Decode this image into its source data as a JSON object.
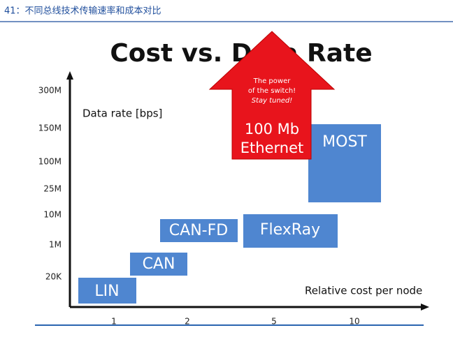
{
  "header": {
    "title": "41：不同总线技术传输速率和成本对比"
  },
  "figure": {
    "title": "Cost vs. Data Rate",
    "y_axis_label": "Data rate [bps]",
    "x_axis_label": "Relative cost per node",
    "y_labels": [
      "300M",
      "150M",
      "100M",
      "25M",
      "10M",
      "1M",
      "20K"
    ],
    "x_labels": [
      "1",
      "2",
      "5",
      "10"
    ],
    "boxes": [
      {
        "label": "LIN"
      },
      {
        "label": "CAN"
      },
      {
        "label": "CAN-FD"
      },
      {
        "label": "FlexRay"
      },
      {
        "label": "MOST"
      }
    ],
    "arrow": {
      "note": [
        "The power",
        "of the switch!",
        "Stay tuned!"
      ],
      "label": [
        "100 Mb",
        "Ethernet"
      ]
    }
  }
}
